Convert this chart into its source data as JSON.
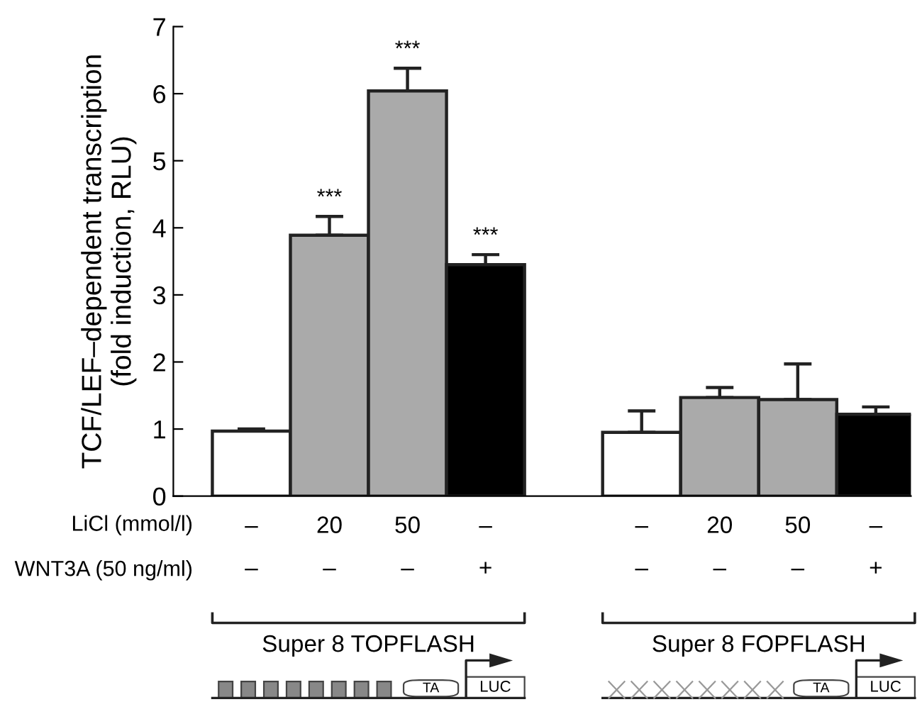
{
  "chart_data": {
    "type": "bar",
    "ylabel": "TCF/LEF–dependent transcription\n(fold induction, RLU)",
    "categories": [
      "–\n–",
      "20\n–",
      "50\n–",
      "–\n+",
      null,
      "–\n–",
      "20\n–",
      "50\n–",
      "–\n+"
    ],
    "values": [
      0.97,
      3.89,
      6.04,
      3.45,
      null,
      0.95,
      1.47,
      1.44,
      1.22
    ],
    "colors": [
      "#ffffff",
      "#aaaaaa",
      "#aaaaaa",
      "#000000",
      null,
      "#ffffff",
      "#aaaaaa",
      "#aaaaaa",
      "#000000"
    ],
    "errors": [
      [
        0.97,
        1.0
      ],
      [
        3.89,
        4.17
      ],
      [
        6.04,
        6.38
      ],
      [
        3.45,
        3.6
      ],
      null,
      [
        0.95,
        1.27
      ],
      [
        1.47,
        1.62
      ],
      [
        1.44,
        1.97
      ],
      [
        1.22,
        1.33
      ]
    ],
    "value_labels": [
      null,
      "***",
      "***",
      "***",
      null,
      null,
      null,
      null,
      null
    ],
    "ylim": [
      0,
      7
    ],
    "yticks": [
      0,
      1,
      2,
      3,
      4,
      5,
      6,
      7
    ],
    "grid": false,
    "legend": false,
    "annotations": [
      "LiCl (mmol/l)",
      "WNT3A (50 ng/ml)",
      "Super 8 TOPFLASH",
      "Super 8 FOPFLASH",
      "TA",
      "LUC",
      "TA",
      "LUC"
    ]
  }
}
